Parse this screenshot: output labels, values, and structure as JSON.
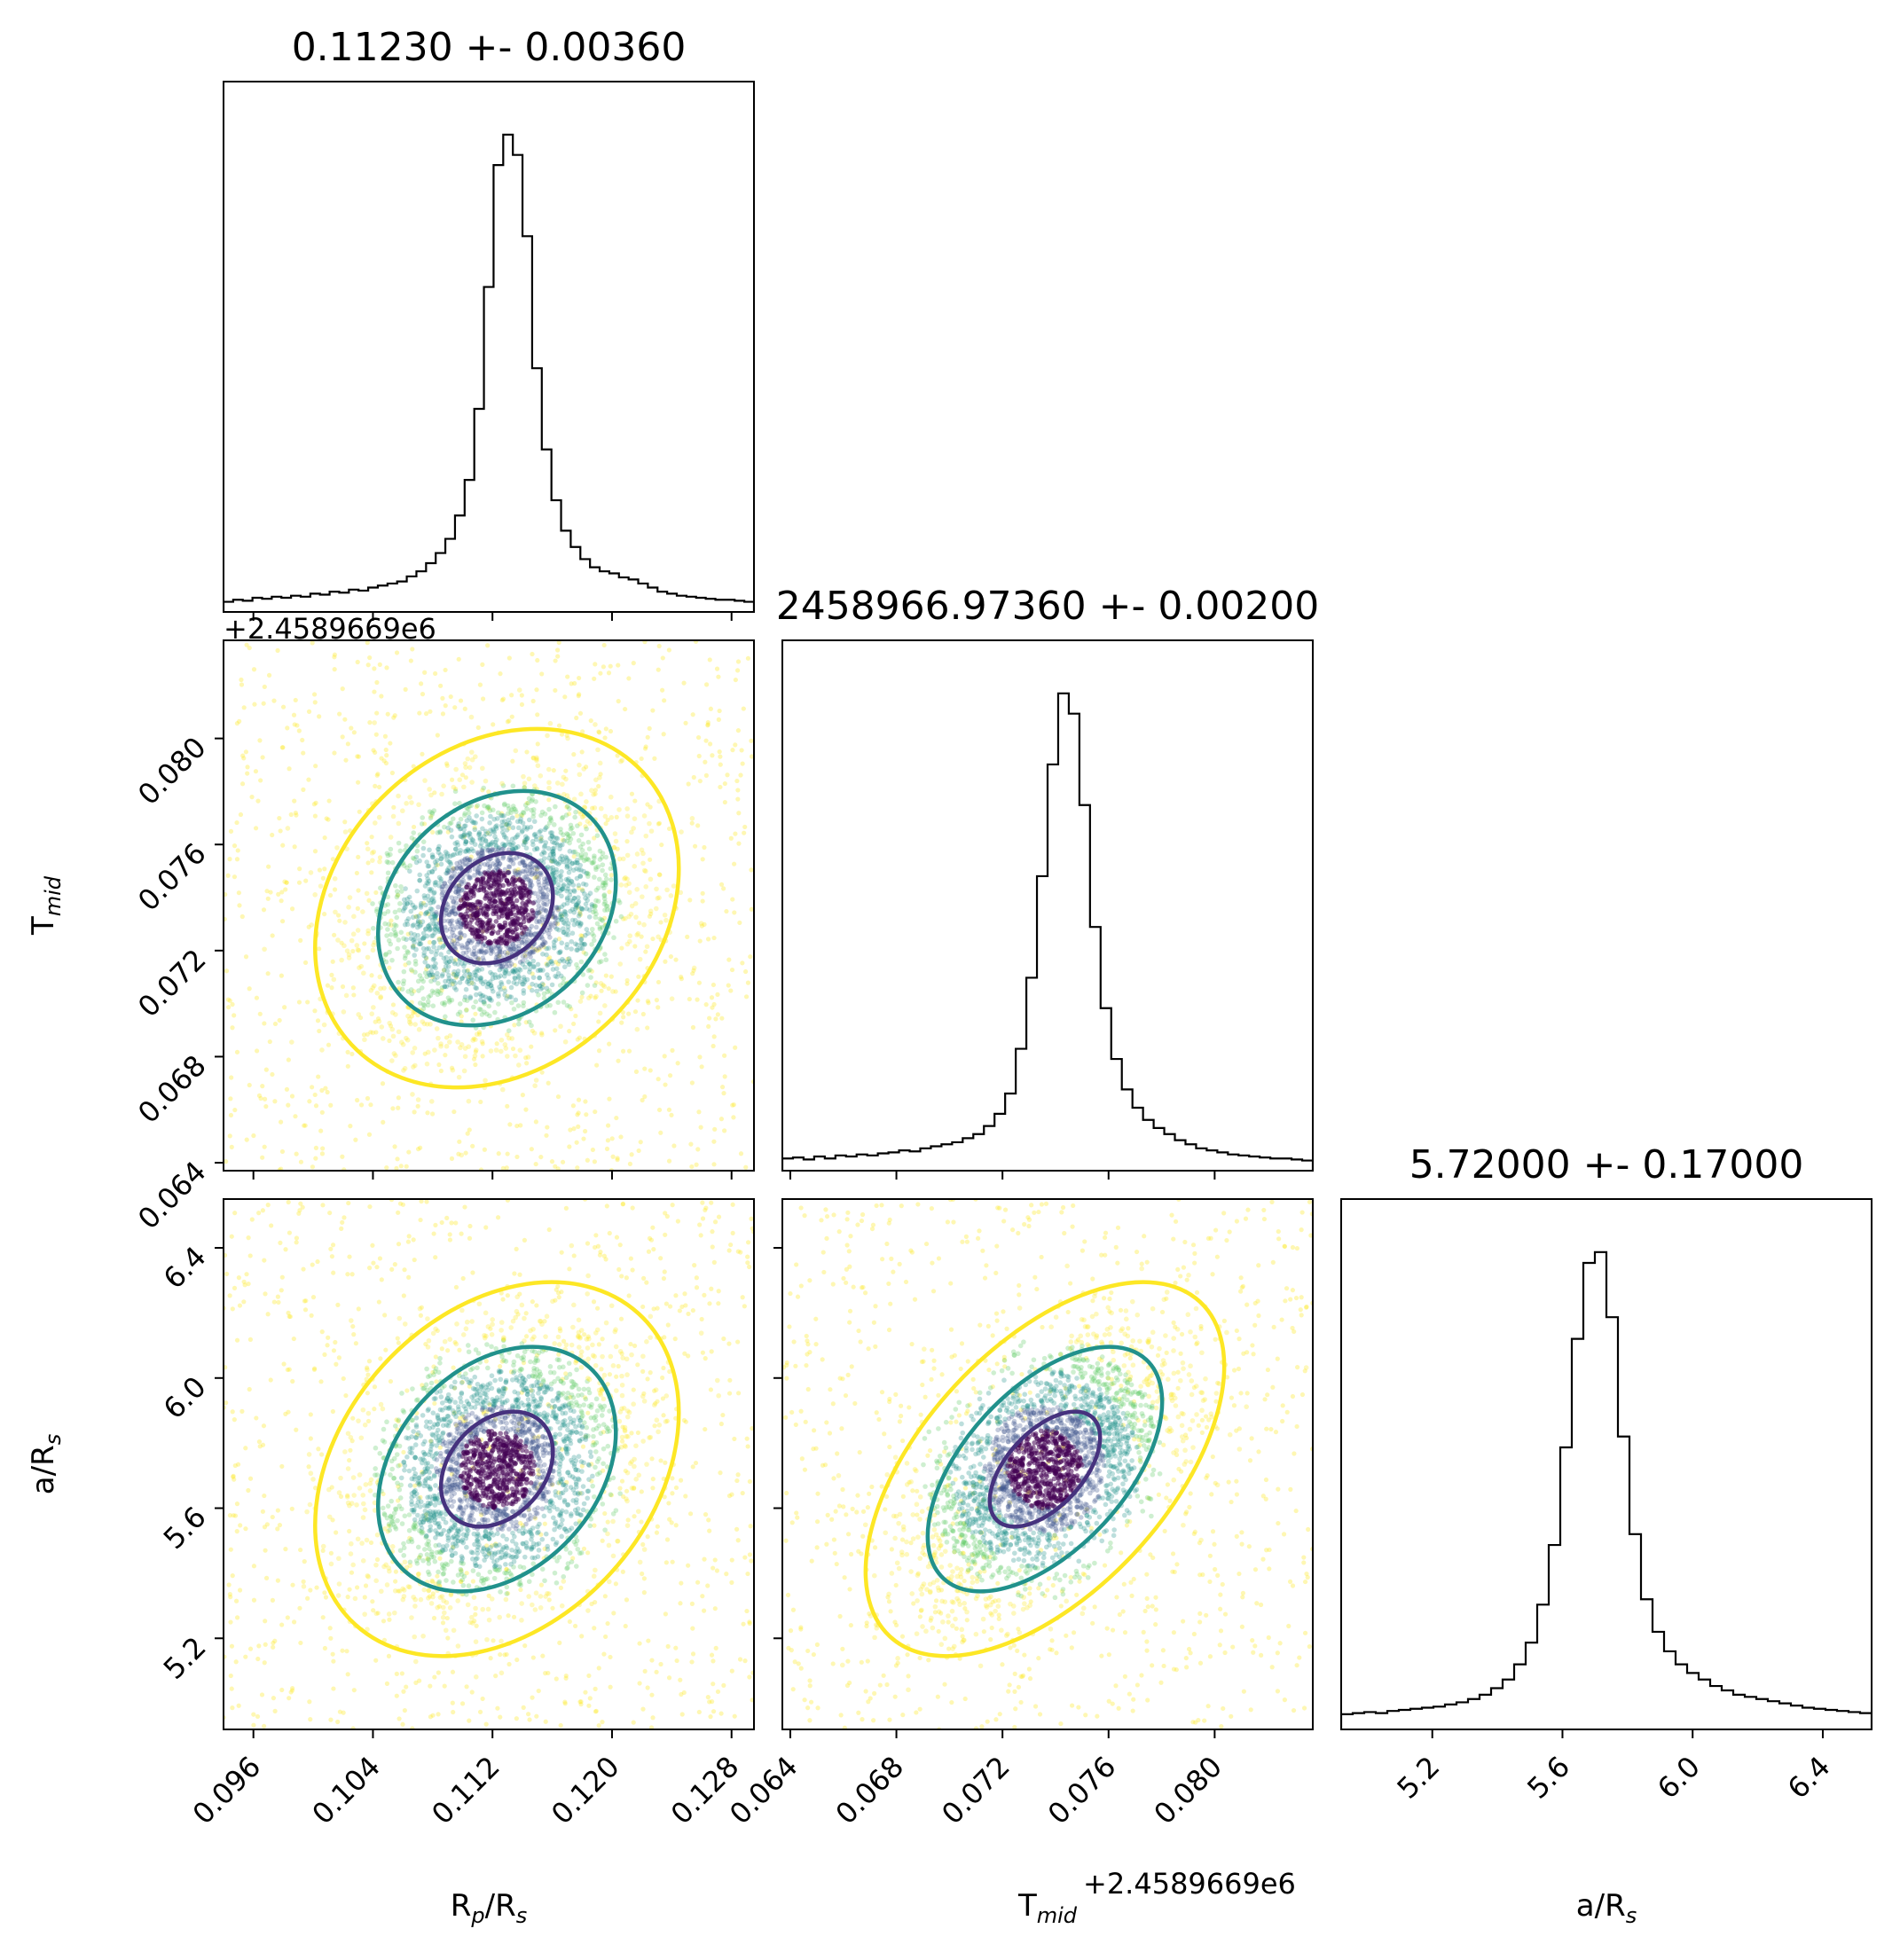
{
  "chart_data": {
    "type": "corner",
    "parameters": [
      {
        "key": "rp",
        "label_main": "R",
        "label_sub": "p",
        "label_mid": "/R",
        "label_sub2": "s",
        "title": "0.11230 +- 0.00360",
        "mean": 0.1123,
        "sigma": 0.0036,
        "range": [
          0.094,
          0.1295
        ],
        "ticks": [
          "0.096",
          "0.104",
          "0.112",
          "0.120",
          "0.128"
        ],
        "tick_values": [
          0.096,
          0.104,
          0.112,
          0.12,
          0.128
        ],
        "offset": ""
      },
      {
        "key": "tmid",
        "label_main": "T",
        "label_sub": "mid",
        "label_mid": "",
        "label_sub2": "",
        "title": "2458966.97360 +- 0.00200",
        "mean": 0.0736,
        "sigma": 0.002,
        "range": [
          0.0637,
          0.0837
        ],
        "ticks": [
          "0.064",
          "0.068",
          "0.072",
          "0.076",
          "0.080"
        ],
        "tick_values": [
          0.064,
          0.068,
          0.072,
          0.076,
          0.08
        ],
        "offset": "+2.4589669e6"
      },
      {
        "key": "ars",
        "label_main": "a/R",
        "label_sub": "s",
        "label_mid": "",
        "label_sub2": "",
        "title": "5.72000 +- 0.17000",
        "mean": 5.72,
        "sigma": 0.17,
        "range": [
          4.92,
          6.55
        ],
        "ticks": [
          "5.2",
          "5.6",
          "6.0",
          "6.4"
        ],
        "tick_values": [
          5.2,
          5.6,
          6.0,
          6.4
        ],
        "offset": ""
      }
    ],
    "histograms": {
      "rp": {
        "bin_edges": [
          0.094,
          0.1295
        ],
        "counts": [
          10,
          12,
          11,
          14,
          13,
          15,
          14,
          16,
          15,
          18,
          17,
          20,
          19,
          22,
          21,
          24,
          26,
          28,
          30,
          35,
          40,
          48,
          58,
          72,
          95,
          130,
          200,
          320,
          440,
          470,
          450,
          370,
          240,
          160,
          110,
          80,
          64,
          52,
          44,
          40,
          38,
          34,
          32,
          28,
          24,
          20,
          18,
          16,
          15,
          14,
          13,
          12,
          12,
          11,
          10
        ]
      },
      "tmid": {
        "bin_edges": [
          0.0637,
          0.0837
        ],
        "counts": [
          12,
          13,
          11,
          14,
          12,
          15,
          14,
          16,
          15,
          17,
          18,
          20,
          19,
          22,
          24,
          26,
          28,
          32,
          36,
          44,
          56,
          76,
          120,
          190,
          290,
          400,
          470,
          450,
          360,
          240,
          160,
          110,
          80,
          62,
          50,
          42,
          36,
          30,
          26,
          22,
          20,
          18,
          16,
          15,
          14,
          13,
          12,
          12,
          11,
          10
        ]
      },
      "ars": {
        "bin_edges": [
          4.92,
          6.55
        ],
        "counts": [
          14,
          15,
          16,
          15,
          17,
          18,
          19,
          20,
          21,
          23,
          25,
          28,
          32,
          38,
          46,
          60,
          80,
          115,
          170,
          260,
          360,
          430,
          440,
          380,
          270,
          180,
          120,
          90,
          72,
          60,
          52,
          46,
          40,
          36,
          32,
          30,
          28,
          26,
          24,
          22,
          20,
          19,
          18,
          17,
          16,
          15
        ]
      }
    },
    "scatter_pairs": [
      {
        "x": "rp",
        "y": "tmid",
        "rho": 0.22
      },
      {
        "x": "rp",
        "y": "ars",
        "rho": 0.3
      },
      {
        "x": "tmid",
        "y": "ars",
        "rho": 0.55
      }
    ],
    "contour_levels": [
      {
        "sigma_mult": 0.8,
        "color": "#46327e"
      },
      {
        "sigma_mult": 1.7,
        "color": "#21918c"
      },
      {
        "sigma_mult": 2.6,
        "color": "#fde725"
      }
    ],
    "point_colors": [
      "#440154",
      "#3b528b",
      "#21918c",
      "#5ec962",
      "#fde725"
    ]
  }
}
